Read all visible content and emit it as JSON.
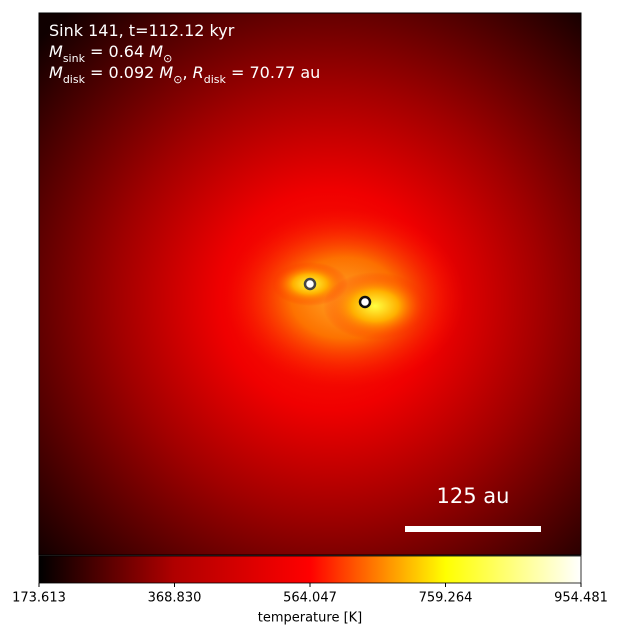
{
  "chart_data": {
    "type": "heatmap",
    "annotation_lines": [
      [
        {
          "text": "Sink 141, t=112.12 kyr"
        }
      ],
      [
        {
          "text": "M",
          "italic": true
        },
        {
          "text": "sink",
          "sub": true
        },
        {
          "text": " = 0.64 "
        },
        {
          "text": "M",
          "italic": true
        },
        {
          "text": "⊙",
          "sub": true
        }
      ],
      [
        {
          "text": "M",
          "italic": true
        },
        {
          "text": "disk",
          "sub": true
        },
        {
          "text": " = 0.092 "
        },
        {
          "text": "M",
          "italic": true
        },
        {
          "text": "⊙",
          "sub": true
        },
        {
          "text": ", "
        },
        {
          "text": "R",
          "italic": true
        },
        {
          "text": "disk",
          "sub": true
        },
        {
          "text": " = 70.77 au"
        }
      ]
    ],
    "scalebar_label": "125 au",
    "colorbar_label": "temperature [K]",
    "clim": [
      173.613,
      954.481
    ],
    "cticks": [
      173.613,
      {
        "value": 368.83,
        "label": "368.830"
      },
      564.047,
      759.264,
      954.481
    ],
    "colormap": [
      "#000000",
      "#b00000",
      "#ff0000",
      "#ffff00",
      "#ffffff"
    ]
  }
}
